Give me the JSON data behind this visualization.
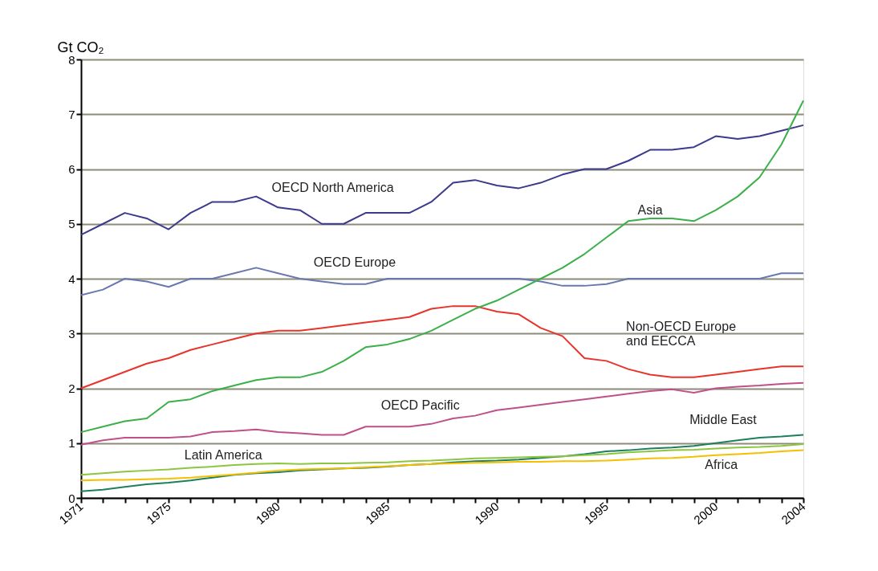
{
  "chart_data": {
    "type": "line",
    "ylabel": "Gt CO₂",
    "x": [
      1971,
      1972,
      1973,
      1974,
      1975,
      1976,
      1977,
      1978,
      1979,
      1980,
      1981,
      1982,
      1983,
      1984,
      1985,
      1986,
      1987,
      1988,
      1989,
      1990,
      1991,
      1992,
      1993,
      1994,
      1995,
      1996,
      1997,
      1998,
      1999,
      2000,
      2001,
      2002,
      2003,
      2004
    ],
    "xlim": [
      1971,
      2004
    ],
    "xticks": [
      1971,
      {
        "value": 1972,
        "label": null
      },
      {
        "value": 1973,
        "label": null
      },
      {
        "value": 1974,
        "label": null
      },
      1975,
      {
        "value": 1976,
        "label": null
      },
      {
        "value": 1977,
        "label": null
      },
      {
        "value": 1978,
        "label": null
      },
      {
        "value": 1979,
        "label": null
      },
      1980,
      {
        "value": 1981,
        "label": null
      },
      {
        "value": 1982,
        "label": null
      },
      {
        "value": 1983,
        "label": null
      },
      {
        "value": 1984,
        "label": null
      },
      1985,
      {
        "value": 1986,
        "label": null
      },
      {
        "value": 1987,
        "label": null
      },
      {
        "value": 1988,
        "label": null
      },
      {
        "value": 1989,
        "label": null
      },
      1990,
      {
        "value": 1991,
        "label": null
      },
      {
        "value": 1992,
        "label": null
      },
      {
        "value": 1993,
        "label": null
      },
      {
        "value": 1994,
        "label": null
      },
      1995,
      {
        "value": 1996,
        "label": null
      },
      {
        "value": 1997,
        "label": null
      },
      {
        "value": 1998,
        "label": null
      },
      {
        "value": 1999,
        "label": null
      },
      2000,
      {
        "value": 2001,
        "label": null
      },
      {
        "value": 2002,
        "label": null
      },
      {
        "value": 2003,
        "label": null
      },
      2004
    ],
    "ylim": [
      0,
      8
    ],
    "yticks": [
      0,
      1,
      2,
      3,
      4,
      5,
      6,
      7,
      8
    ],
    "grid": "y",
    "legend": false,
    "marker": "none",
    "line_style": "solid",
    "series": [
      {
        "name": "OECD North America",
        "color": "#3c3a8c",
        "values": [
          4.8,
          5.0,
          5.2,
          5.1,
          4.9,
          5.2,
          5.4,
          5.4,
          5.5,
          5.3,
          5.25,
          5.0,
          5.0,
          5.2,
          5.2,
          5.2,
          5.4,
          5.75,
          5.8,
          5.7,
          5.65,
          5.75,
          5.9,
          6.0,
          6.0,
          6.15,
          6.35,
          6.35,
          6.4,
          6.6,
          6.55,
          6.6,
          6.7,
          6.8
        ]
      },
      {
        "name": "OECD Europe",
        "color": "#6a78b0",
        "values": [
          3.7,
          3.8,
          4.0,
          3.95,
          3.85,
          4.0,
          4.0,
          4.1,
          4.2,
          4.1,
          4.0,
          3.95,
          3.9,
          3.9,
          4.0,
          4.0,
          4.0,
          4.0,
          4.0,
          4.0,
          4.0,
          3.95,
          3.87,
          3.87,
          3.9,
          4.0,
          4.0,
          4.0,
          4.0,
          4.0,
          4.0,
          4.0,
          4.1,
          4.1
        ]
      },
      {
        "name": "Non-OECD Europe\nand EECCA",
        "color": "#e8342a",
        "values": [
          2.0,
          2.15,
          2.3,
          2.45,
          2.55,
          2.7,
          2.8,
          2.9,
          3.0,
          3.05,
          3.05,
          3.1,
          3.15,
          3.2,
          3.25,
          3.3,
          3.45,
          3.5,
          3.5,
          3.4,
          3.35,
          3.1,
          2.95,
          2.55,
          2.5,
          2.35,
          2.25,
          2.2,
          2.2,
          2.25,
          2.3,
          2.35,
          2.4,
          2.4
        ]
      },
      {
        "name": "Asia",
        "color": "#3bb04a",
        "values": [
          1.2,
          1.3,
          1.4,
          1.45,
          1.75,
          1.8,
          1.95,
          2.05,
          2.15,
          2.2,
          2.2,
          2.3,
          2.5,
          2.75,
          2.8,
          2.9,
          3.05,
          3.25,
          3.45,
          3.6,
          3.8,
          4.0,
          4.2,
          4.45,
          4.75,
          5.05,
          5.1,
          5.1,
          5.05,
          5.25,
          5.5,
          5.85,
          6.45,
          7.25
        ]
      },
      {
        "name": "OECD Pacific",
        "color": "#c0508a",
        "values": [
          0.97,
          1.05,
          1.1,
          1.1,
          1.1,
          1.12,
          1.2,
          1.22,
          1.25,
          1.2,
          1.18,
          1.15,
          1.15,
          1.3,
          1.3,
          1.3,
          1.35,
          1.45,
          1.5,
          1.6,
          1.65,
          1.7,
          1.75,
          1.8,
          1.85,
          1.9,
          1.95,
          1.98,
          1.92,
          2.0,
          2.03,
          2.05,
          2.08,
          2.1
        ]
      },
      {
        "name": "Middle East",
        "color": "#1e7f5e",
        "values": [
          0.12,
          0.15,
          0.2,
          0.25,
          0.28,
          0.32,
          0.37,
          0.42,
          0.45,
          0.47,
          0.5,
          0.52,
          0.54,
          0.55,
          0.57,
          0.6,
          0.62,
          0.65,
          0.67,
          0.68,
          0.7,
          0.73,
          0.76,
          0.8,
          0.85,
          0.87,
          0.9,
          0.92,
          0.95,
          1.0,
          1.05,
          1.1,
          1.12,
          1.15
        ]
      },
      {
        "name": "Latin America",
        "color": "#8cc63f",
        "values": [
          0.42,
          0.45,
          0.48,
          0.5,
          0.52,
          0.55,
          0.57,
          0.6,
          0.62,
          0.63,
          0.62,
          0.63,
          0.63,
          0.64,
          0.65,
          0.67,
          0.68,
          0.7,
          0.72,
          0.73,
          0.74,
          0.75,
          0.76,
          0.78,
          0.8,
          0.83,
          0.85,
          0.87,
          0.88,
          0.9,
          0.92,
          0.93,
          0.95,
          0.98
        ]
      },
      {
        "name": "Africa",
        "color": "#f5c000",
        "values": [
          0.32,
          0.33,
          0.33,
          0.34,
          0.35,
          0.37,
          0.4,
          0.43,
          0.46,
          0.5,
          0.52,
          0.53,
          0.54,
          0.56,
          0.58,
          0.6,
          0.62,
          0.63,
          0.64,
          0.65,
          0.66,
          0.66,
          0.67,
          0.67,
          0.68,
          0.7,
          0.72,
          0.73,
          0.75,
          0.78,
          0.8,
          0.82,
          0.85,
          0.87
        ]
      }
    ]
  }
}
